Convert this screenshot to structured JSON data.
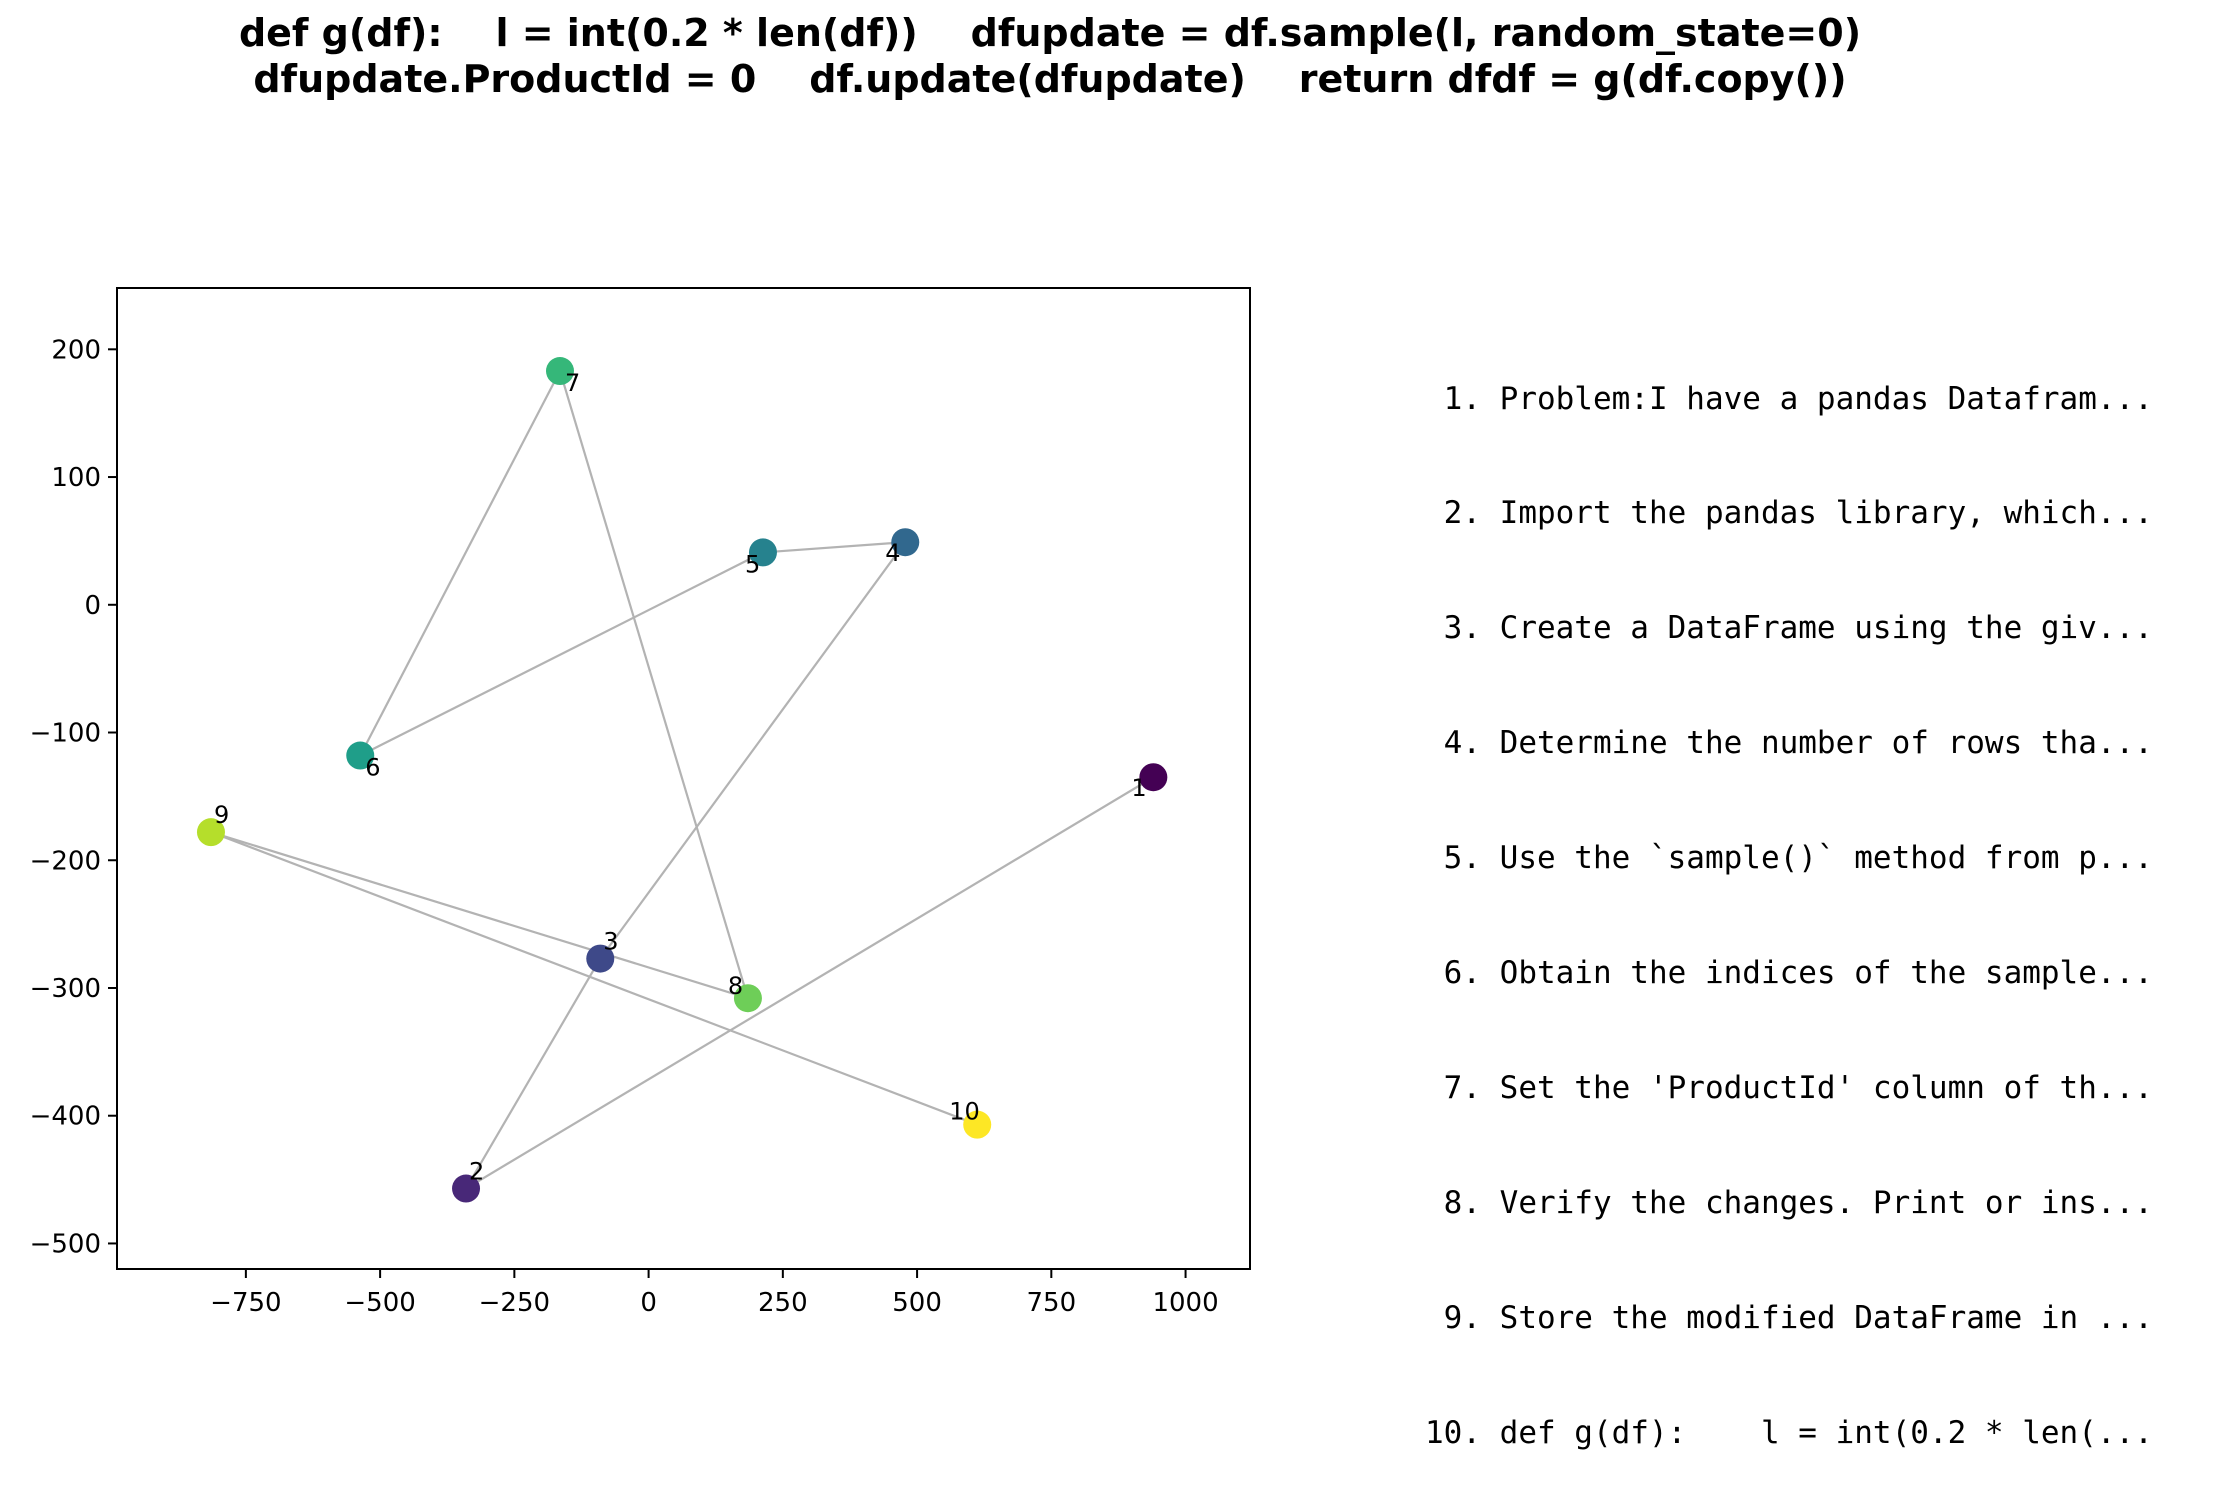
{
  "title_lines": [
    "def g(df):    l = int(0.2 * len(df))    dfupdate = df.sample(l, random_state=0)",
    "dfupdate.ProductId = 0    df.update(dfupdate)    return dfdf = g(df.copy())"
  ],
  "steps": [
    " 1. Problem:I have a pandas Datafram...",
    " 2. Import the pandas library, which...",
    " 3. Create a DataFrame using the giv...",
    " 4. Determine the number of rows tha...",
    " 5. Use the `sample()` method from p...",
    " 6. Obtain the indices of the sample...",
    " 7. Set the 'ProductId' column of th...",
    " 8. Verify the changes. Print or ins...",
    " 9. Store the modified DataFrame in ...",
    "10. def g(df):    l = int(0.2 * len(..."
  ],
  "chart_data": {
    "type": "scatter",
    "title": "def g(df):    l = int(0.2 * len(df))    dfupdate = df.sample(l, random_state=0)    dfupdate.ProductId = 0    df.update(dfupdate)    return dfdf = g(df.copy())",
    "xlabel": "",
    "ylabel": "",
    "xlim": [
      -990,
      1120
    ],
    "ylim": [
      -520,
      248
    ],
    "xticks": [
      -750,
      -500,
      -250,
      0,
      250,
      500,
      750,
      1000
    ],
    "yticks": [
      -500,
      -400,
      -300,
      -200,
      -100,
      0,
      100,
      200
    ],
    "grid": false,
    "connection_color": "#b3b3b3",
    "colormap": "viridis",
    "points": [
      {
        "label": "1",
        "x": 940,
        "y": -135,
        "color": "#440154"
      },
      {
        "label": "2",
        "x": -340,
        "y": -457,
        "color": "#482878"
      },
      {
        "label": "3",
        "x": -90,
        "y": -277,
        "color": "#3e4989"
      },
      {
        "label": "4",
        "x": 478,
        "y": 49,
        "color": "#31688e"
      },
      {
        "label": "5",
        "x": 213,
        "y": 41,
        "color": "#26828e"
      },
      {
        "label": "6",
        "x": -537,
        "y": -118,
        "color": "#1f9e89"
      },
      {
        "label": "7",
        "x": -165,
        "y": 183,
        "color": "#35b779"
      },
      {
        "label": "8",
        "x": 185,
        "y": -308,
        "color": "#6ece58"
      },
      {
        "label": "9",
        "x": -815,
        "y": -178,
        "color": "#b5de2b"
      },
      {
        "label": "10",
        "x": 612,
        "y": -407,
        "color": "#fde725"
      }
    ],
    "edges": [
      [
        1,
        2
      ],
      [
        2,
        3
      ],
      [
        3,
        4
      ],
      [
        4,
        5
      ],
      [
        5,
        6
      ],
      [
        6,
        7
      ],
      [
        7,
        8
      ],
      [
        8,
        9
      ],
      [
        9,
        10
      ]
    ]
  }
}
